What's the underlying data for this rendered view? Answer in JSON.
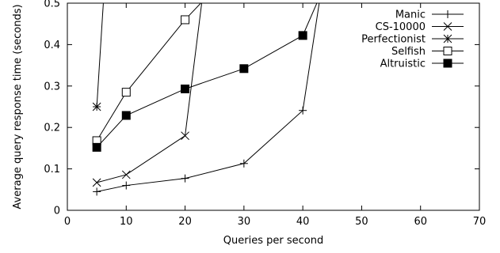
{
  "chart_data": {
    "type": "line",
    "xlabel": "Queries per second",
    "ylabel": "Average query response time (seconds)",
    "xlim": [
      0,
      70
    ],
    "ylim": [
      0,
      0.5
    ],
    "xticks": [
      "0",
      "10",
      "20",
      "30",
      "40",
      "50",
      "60",
      "70"
    ],
    "yticks": [
      "0",
      "0.1",
      "0.2",
      "0.3",
      "0.4",
      "0.5"
    ],
    "legend_position": "top-right",
    "grid": false,
    "series": [
      {
        "name": "Manic",
        "marker": "plus",
        "points": [
          [
            5,
            0.045
          ],
          [
            10,
            0.06
          ],
          [
            20,
            0.077
          ],
          [
            30,
            0.113
          ],
          [
            40,
            0.241
          ],
          [
            43,
            0.52
          ]
        ]
      },
      {
        "name": "CS-10000",
        "marker": "cross",
        "points": [
          [
            5,
            0.067
          ],
          [
            10,
            0.086
          ],
          [
            20,
            0.18
          ],
          [
            23,
            0.52
          ]
        ]
      },
      {
        "name": "Perfectionist",
        "marker": "star",
        "points": [
          [
            5,
            0.25
          ],
          [
            6.2,
            0.52
          ]
        ]
      },
      {
        "name": "Selfish",
        "marker": "open-square",
        "points": [
          [
            5,
            0.168
          ],
          [
            10,
            0.285
          ],
          [
            20,
            0.46
          ],
          [
            24,
            0.52
          ]
        ]
      },
      {
        "name": "Altruistic",
        "marker": "filled-square",
        "points": [
          [
            5,
            0.152
          ],
          [
            10,
            0.229
          ],
          [
            20,
            0.293
          ],
          [
            30,
            0.342
          ],
          [
            40,
            0.422
          ],
          [
            43,
            0.52
          ]
        ]
      }
    ]
  }
}
